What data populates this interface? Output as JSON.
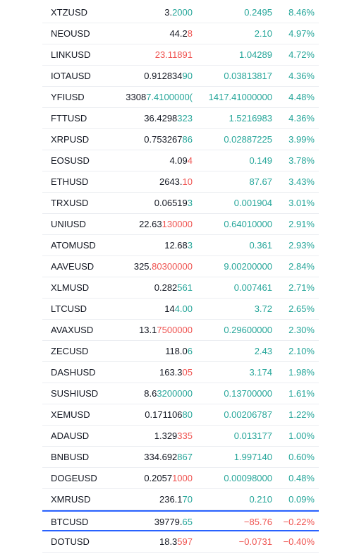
{
  "rows": [
    {
      "symbol": "XTZUSD",
      "last_a": "3.",
      "last_b": "2000",
      "last_b_color": "up",
      "change": "0.2495",
      "change_color": "up",
      "pct": "8.46%",
      "pct_color": "up"
    },
    {
      "symbol": "NEOUSD",
      "last_a": "44.2",
      "last_b": "8",
      "last_b_color": "down",
      "change": "2.10",
      "change_color": "up",
      "pct": "4.97%",
      "pct_color": "up"
    },
    {
      "symbol": "LINKUSD",
      "last_a": "",
      "last_b": "23.11891",
      "last_b_color": "down",
      "change": "1.04289",
      "change_color": "up",
      "pct": "4.72%",
      "pct_color": "up"
    },
    {
      "symbol": "IOTAUSD",
      "last_a": "0.912834",
      "last_b": "90",
      "last_b_color": "up",
      "change": "0.03813817",
      "change_color": "up",
      "pct": "4.36%",
      "pct_color": "up"
    },
    {
      "symbol": "YFIUSD",
      "last_a": "3308",
      "last_b": "7.4100000(",
      "last_b_color": "up",
      "change": "1417.41000000",
      "change_color": "up",
      "pct": "4.48%",
      "pct_color": "up"
    },
    {
      "symbol": "FTTUSD",
      "last_a": "36.4298",
      "last_b": "323",
      "last_b_color": "up",
      "change": "1.5216983",
      "change_color": "up",
      "pct": "4.36%",
      "pct_color": "up"
    },
    {
      "symbol": "XRPUSD",
      "last_a": "0.753267",
      "last_b": "86",
      "last_b_color": "up",
      "change": "0.02887225",
      "change_color": "up",
      "pct": "3.99%",
      "pct_color": "up"
    },
    {
      "symbol": "EOSUSD",
      "last_a": "4.09",
      "last_b": "4",
      "last_b_color": "down",
      "change": "0.149",
      "change_color": "up",
      "pct": "3.78%",
      "pct_color": "up"
    },
    {
      "symbol": "ETHUSD",
      "last_a": "2643.",
      "last_b": "10",
      "last_b_color": "down",
      "change": "87.67",
      "change_color": "up",
      "pct": "3.43%",
      "pct_color": "up"
    },
    {
      "symbol": "TRXUSD",
      "last_a": "0.06519",
      "last_b": "3",
      "last_b_color": "up",
      "change": "0.001904",
      "change_color": "up",
      "pct": "3.01%",
      "pct_color": "up"
    },
    {
      "symbol": "UNIUSD",
      "last_a": "22.63",
      "last_b": "130000",
      "last_b_color": "down",
      "change": "0.64010000",
      "change_color": "up",
      "pct": "2.91%",
      "pct_color": "up"
    },
    {
      "symbol": "ATOMUSD",
      "last_a": "12.68",
      "last_b": "3",
      "last_b_color": "up",
      "change": "0.361",
      "change_color": "up",
      "pct": "2.93%",
      "pct_color": "up"
    },
    {
      "symbol": "AAVEUSD",
      "last_a": "325.",
      "last_b": "80300000",
      "last_b_color": "down",
      "change": "9.00200000",
      "change_color": "up",
      "pct": "2.84%",
      "pct_color": "up"
    },
    {
      "symbol": "XLMUSD",
      "last_a": "0.282",
      "last_b": "561",
      "last_b_color": "up",
      "change": "0.007461",
      "change_color": "up",
      "pct": "2.71%",
      "pct_color": "up"
    },
    {
      "symbol": "LTCUSD",
      "last_a": "14",
      "last_b": "4.00",
      "last_b_color": "up",
      "change": "3.72",
      "change_color": "up",
      "pct": "2.65%",
      "pct_color": "up"
    },
    {
      "symbol": "AVAXUSD",
      "last_a": "13.1",
      "last_b": "7500000",
      "last_b_color": "down",
      "change": "0.29600000",
      "change_color": "up",
      "pct": "2.30%",
      "pct_color": "up"
    },
    {
      "symbol": "ZECUSD",
      "last_a": "118.0",
      "last_b": "6",
      "last_b_color": "up",
      "change": "2.43",
      "change_color": "up",
      "pct": "2.10%",
      "pct_color": "up"
    },
    {
      "symbol": "DASHUSD",
      "last_a": "163.3",
      "last_b": "05",
      "last_b_color": "down",
      "change": "3.174",
      "change_color": "up",
      "pct": "1.98%",
      "pct_color": "up"
    },
    {
      "symbol": "SUSHIUSD",
      "last_a": "8.6",
      "last_b": "3200000",
      "last_b_color": "up",
      "change": "0.13700000",
      "change_color": "up",
      "pct": "1.61%",
      "pct_color": "up"
    },
    {
      "symbol": "XEMUSD",
      "last_a": "0.171106",
      "last_b": "80",
      "last_b_color": "up",
      "change": "0.00206787",
      "change_color": "up",
      "pct": "1.22%",
      "pct_color": "up"
    },
    {
      "symbol": "ADAUSD",
      "last_a": "1.329",
      "last_b": "335",
      "last_b_color": "down",
      "change": "0.013177",
      "change_color": "up",
      "pct": "1.00%",
      "pct_color": "up"
    },
    {
      "symbol": "BNBUSD",
      "last_a": "334.692",
      "last_b": "867",
      "last_b_color": "up",
      "change": "1.997140",
      "change_color": "up",
      "pct": "0.60%",
      "pct_color": "up"
    },
    {
      "symbol": "DOGEUSD",
      "last_a": "0.2057",
      "last_b": "1000",
      "last_b_color": "down",
      "change": "0.00098000",
      "change_color": "up",
      "pct": "0.48%",
      "pct_color": "up"
    },
    {
      "symbol": "XMRUSD",
      "last_a": "236.1",
      "last_b": "70",
      "last_b_color": "up",
      "change": "0.210",
      "change_color": "up",
      "pct": "0.09%",
      "pct_color": "up"
    },
    {
      "symbol": "BTCUSD",
      "last_a": "39779.",
      "last_b": "65",
      "last_b_color": "up",
      "change": "−85.76",
      "change_color": "down",
      "pct": "−0.22%",
      "pct_color": "down",
      "highlighted": true
    },
    {
      "symbol": "DOTUSD",
      "last_a": "18.3",
      "last_b": "597",
      "last_b_color": "down",
      "change": "−0.0731",
      "change_color": "down",
      "pct": "−0.40%",
      "pct_color": "down"
    }
  ]
}
